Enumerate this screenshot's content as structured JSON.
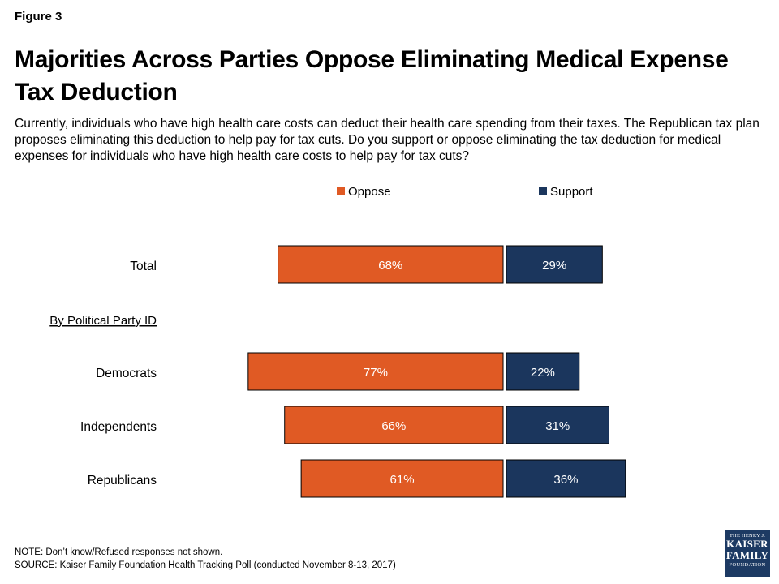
{
  "figure_label": "Figure 3",
  "title": "Majorities Across Parties Oppose Eliminating Medical Expense Tax Deduction",
  "subtitle": "Currently, individuals who have high health care costs can deduct their health care spending from their taxes. The Republican tax plan proposes eliminating this deduction to help pay for tax cuts. Do you support or oppose eliminating the tax deduction for medical expenses for individuals who have high health care costs to help pay for tax cuts?",
  "footer": {
    "note": "NOTE: Don’t know/Refused responses not shown.",
    "source": "SOURCE: Kaiser Family Foundation Health Tracking Poll (conducted November 8-13, 2017)"
  },
  "logo": {
    "line1": "THE HENRY J.",
    "line2": "KAISER",
    "line3": "FAMILY",
    "line4": "FOUNDATION"
  },
  "colors": {
    "oppose": "#e05a24",
    "support": "#1b365d"
  },
  "chart_data": {
    "type": "bar",
    "orientation": "horizontal",
    "layout": "diverging",
    "legend_position": "top",
    "grid": false,
    "section_label": "By Political Party ID",
    "categories": [
      "Total",
      "Democrats",
      "Independents",
      "Republicans"
    ],
    "series": [
      {
        "name": "Oppose",
        "values": [
          68,
          77,
          66,
          61
        ],
        "labels": [
          "68%",
          "77%",
          "66%",
          "61%"
        ]
      },
      {
        "name": "Support",
        "values": [
          29,
          22,
          31,
          36
        ],
        "labels": [
          "29%",
          "22%",
          "31%",
          "36%"
        ]
      }
    ]
  }
}
